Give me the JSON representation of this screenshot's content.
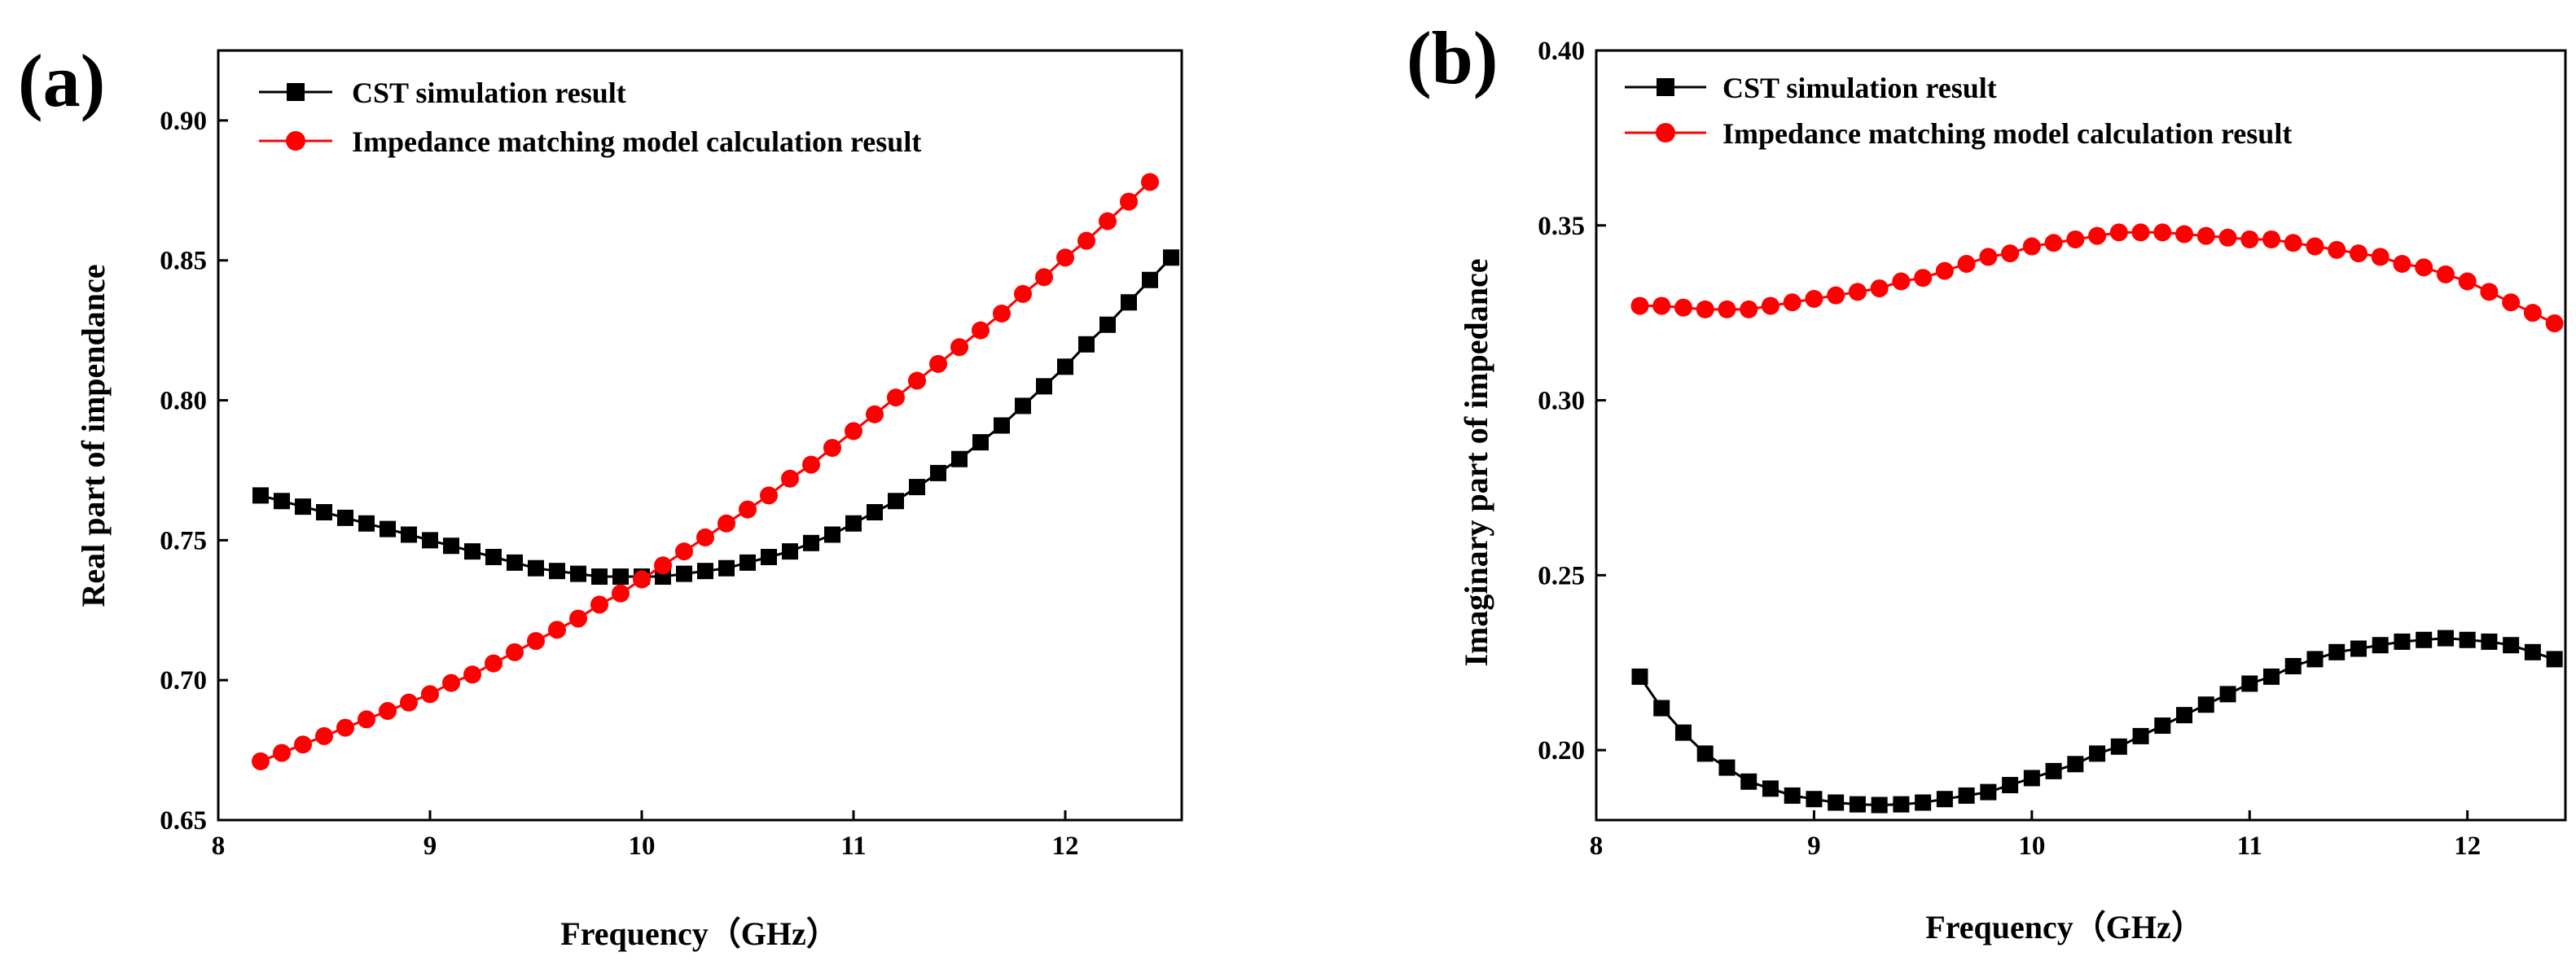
{
  "chart_data": [
    {
      "panel_label": "(a)",
      "type": "line",
      "xlabel": "Frequency（GHz）",
      "ylabel": "Real part of impendance",
      "xlim": [
        8,
        12.55
      ],
      "ylim": [
        0.65,
        0.925
      ],
      "x_ticks": [
        "8",
        "9",
        "10",
        "11",
        "12"
      ],
      "x_tick_values": [
        8,
        9,
        10,
        11,
        12
      ],
      "y_ticks": [
        "0.65",
        "0.70",
        "0.75",
        "0.80",
        "0.85",
        "0.90"
      ],
      "y_tick_values": [
        0.65,
        0.7,
        0.75,
        0.8,
        0.85,
        0.9
      ],
      "grid": false,
      "legend_position": "top-left",
      "series": [
        {
          "name": "CST simulation result",
          "color": "#000000",
          "marker": "square",
          "x": [
            8.2,
            8.3,
            8.4,
            8.5,
            8.6,
            8.7,
            8.8,
            8.9,
            9.0,
            9.1,
            9.2,
            9.3,
            9.4,
            9.5,
            9.6,
            9.7,
            9.8,
            9.9,
            10.0,
            10.1,
            10.2,
            10.3,
            10.4,
            10.5,
            10.6,
            10.7,
            10.8,
            10.9,
            11.0,
            11.1,
            11.2,
            11.3,
            11.4,
            11.5,
            11.6,
            11.7,
            11.8,
            11.9,
            12.0,
            12.1,
            12.2,
            12.3,
            12.4,
            12.5
          ],
          "y": [
            0.766,
            0.764,
            0.762,
            0.76,
            0.758,
            0.756,
            0.754,
            0.752,
            0.75,
            0.748,
            0.746,
            0.744,
            0.742,
            0.74,
            0.739,
            0.738,
            0.737,
            0.737,
            0.737,
            0.737,
            0.738,
            0.739,
            0.74,
            0.742,
            0.744,
            0.746,
            0.749,
            0.752,
            0.756,
            0.76,
            0.764,
            0.769,
            0.774,
            0.779,
            0.785,
            0.791,
            0.798,
            0.805,
            0.812,
            0.82,
            0.827,
            0.835,
            0.843,
            0.851
          ]
        },
        {
          "name": "Impedance matching model calculation result",
          "color": "#ff0000",
          "marker": "circle",
          "x": [
            8.2,
            8.3,
            8.4,
            8.5,
            8.6,
            8.7,
            8.8,
            8.9,
            9.0,
            9.1,
            9.2,
            9.3,
            9.4,
            9.5,
            9.6,
            9.7,
            9.8,
            9.9,
            10.0,
            10.1,
            10.2,
            10.3,
            10.4,
            10.5,
            10.6,
            10.7,
            10.8,
            10.9,
            11.0,
            11.1,
            11.2,
            11.3,
            11.4,
            11.5,
            11.6,
            11.7,
            11.8,
            11.9,
            12.0,
            12.1,
            12.2,
            12.3,
            12.4
          ],
          "y": [
            0.671,
            0.674,
            0.677,
            0.68,
            0.683,
            0.686,
            0.689,
            0.692,
            0.695,
            0.699,
            0.702,
            0.706,
            0.71,
            0.714,
            0.718,
            0.722,
            0.727,
            0.731,
            0.736,
            0.741,
            0.746,
            0.751,
            0.756,
            0.761,
            0.766,
            0.772,
            0.777,
            0.783,
            0.789,
            0.795,
            0.801,
            0.807,
            0.813,
            0.819,
            0.825,
            0.831,
            0.838,
            0.844,
            0.851,
            0.857,
            0.864,
            0.871,
            0.878
          ]
        }
      ]
    },
    {
      "panel_label": "(b)",
      "type": "line",
      "xlabel": "Frequency（GHz）",
      "ylabel": "Imaginary part of impedance",
      "xlim": [
        8,
        12.45
      ],
      "ylim": [
        0.18,
        0.4
      ],
      "x_ticks": [
        "8",
        "9",
        "10",
        "11",
        "12"
      ],
      "x_tick_values": [
        8,
        9,
        10,
        11,
        12
      ],
      "y_ticks": [
        "0.20",
        "0.25",
        "0.30",
        "0.35",
        "0.40"
      ],
      "y_tick_values": [
        0.2,
        0.25,
        0.3,
        0.35,
        0.4
      ],
      "grid": false,
      "legend_position": "top-left",
      "series": [
        {
          "name": "CST simulation result",
          "color": "#000000",
          "marker": "square",
          "x": [
            8.2,
            8.3,
            8.4,
            8.5,
            8.6,
            8.7,
            8.8,
            8.9,
            9.0,
            9.1,
            9.2,
            9.3,
            9.4,
            9.5,
            9.6,
            9.7,
            9.8,
            9.9,
            10.0,
            10.1,
            10.2,
            10.3,
            10.4,
            10.5,
            10.6,
            10.7,
            10.8,
            10.9,
            11.0,
            11.1,
            11.2,
            11.3,
            11.4,
            11.5,
            11.6,
            11.7,
            11.8,
            11.9,
            12.0,
            12.1,
            12.2,
            12.3,
            12.4
          ],
          "y": [
            0.221,
            0.212,
            0.205,
            0.199,
            0.195,
            0.191,
            0.189,
            0.187,
            0.186,
            0.185,
            0.1845,
            0.1843,
            0.1845,
            0.185,
            0.186,
            0.187,
            0.188,
            0.19,
            0.192,
            0.194,
            0.196,
            0.199,
            0.201,
            0.204,
            0.207,
            0.21,
            0.213,
            0.216,
            0.219,
            0.221,
            0.224,
            0.226,
            0.228,
            0.229,
            0.23,
            0.231,
            0.2315,
            0.232,
            0.2315,
            0.231,
            0.23,
            0.228,
            0.226
          ]
        },
        {
          "name": "Impedance matching model calculation result",
          "color": "#ff0000",
          "marker": "circle",
          "x": [
            8.2,
            8.3,
            8.4,
            8.5,
            8.6,
            8.7,
            8.8,
            8.9,
            9.0,
            9.1,
            9.2,
            9.3,
            9.4,
            9.5,
            9.6,
            9.7,
            9.8,
            9.9,
            10.0,
            10.1,
            10.2,
            10.3,
            10.4,
            10.5,
            10.6,
            10.7,
            10.8,
            10.9,
            11.0,
            11.1,
            11.2,
            11.3,
            11.4,
            11.5,
            11.6,
            11.7,
            11.8,
            11.9,
            12.0,
            12.1,
            12.2,
            12.3,
            12.4
          ],
          "y": [
            0.327,
            0.327,
            0.3265,
            0.326,
            0.326,
            0.326,
            0.327,
            0.328,
            0.329,
            0.33,
            0.331,
            0.332,
            0.334,
            0.335,
            0.337,
            0.339,
            0.341,
            0.342,
            0.344,
            0.345,
            0.346,
            0.347,
            0.348,
            0.348,
            0.348,
            0.3475,
            0.347,
            0.3465,
            0.346,
            0.346,
            0.345,
            0.344,
            0.343,
            0.342,
            0.341,
            0.339,
            0.338,
            0.336,
            0.334,
            0.331,
            0.328,
            0.325,
            0.322
          ]
        }
      ]
    }
  ]
}
